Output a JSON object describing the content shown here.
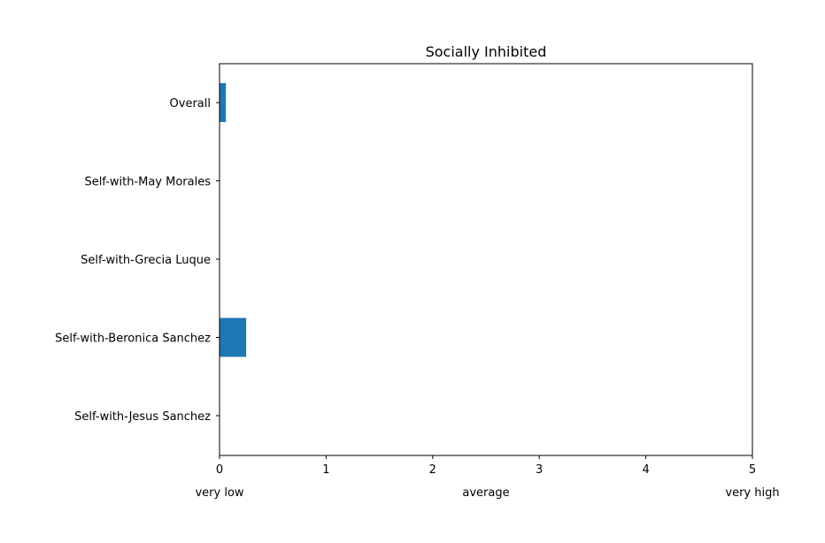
{
  "chart_data": {
    "type": "bar",
    "orientation": "horizontal",
    "title": "Socially Inhibited",
    "categories": [
      "Overall",
      "Self-with-May Morales",
      "Self-with-Grecia Luque",
      "Self-with-Beronica Sanchez",
      "Self-with-Jesus Sanchez"
    ],
    "values": [
      0.06,
      0,
      0,
      0.25,
      0
    ],
    "xlim": [
      0,
      5
    ],
    "xticks": [
      "0",
      "1",
      "2",
      "3",
      "4",
      "5"
    ],
    "scale_labels": [
      "very low",
      "average",
      "very high"
    ],
    "xlabel": "",
    "ylabel": "",
    "grid": false,
    "bar_color": "#1f77b4"
  }
}
